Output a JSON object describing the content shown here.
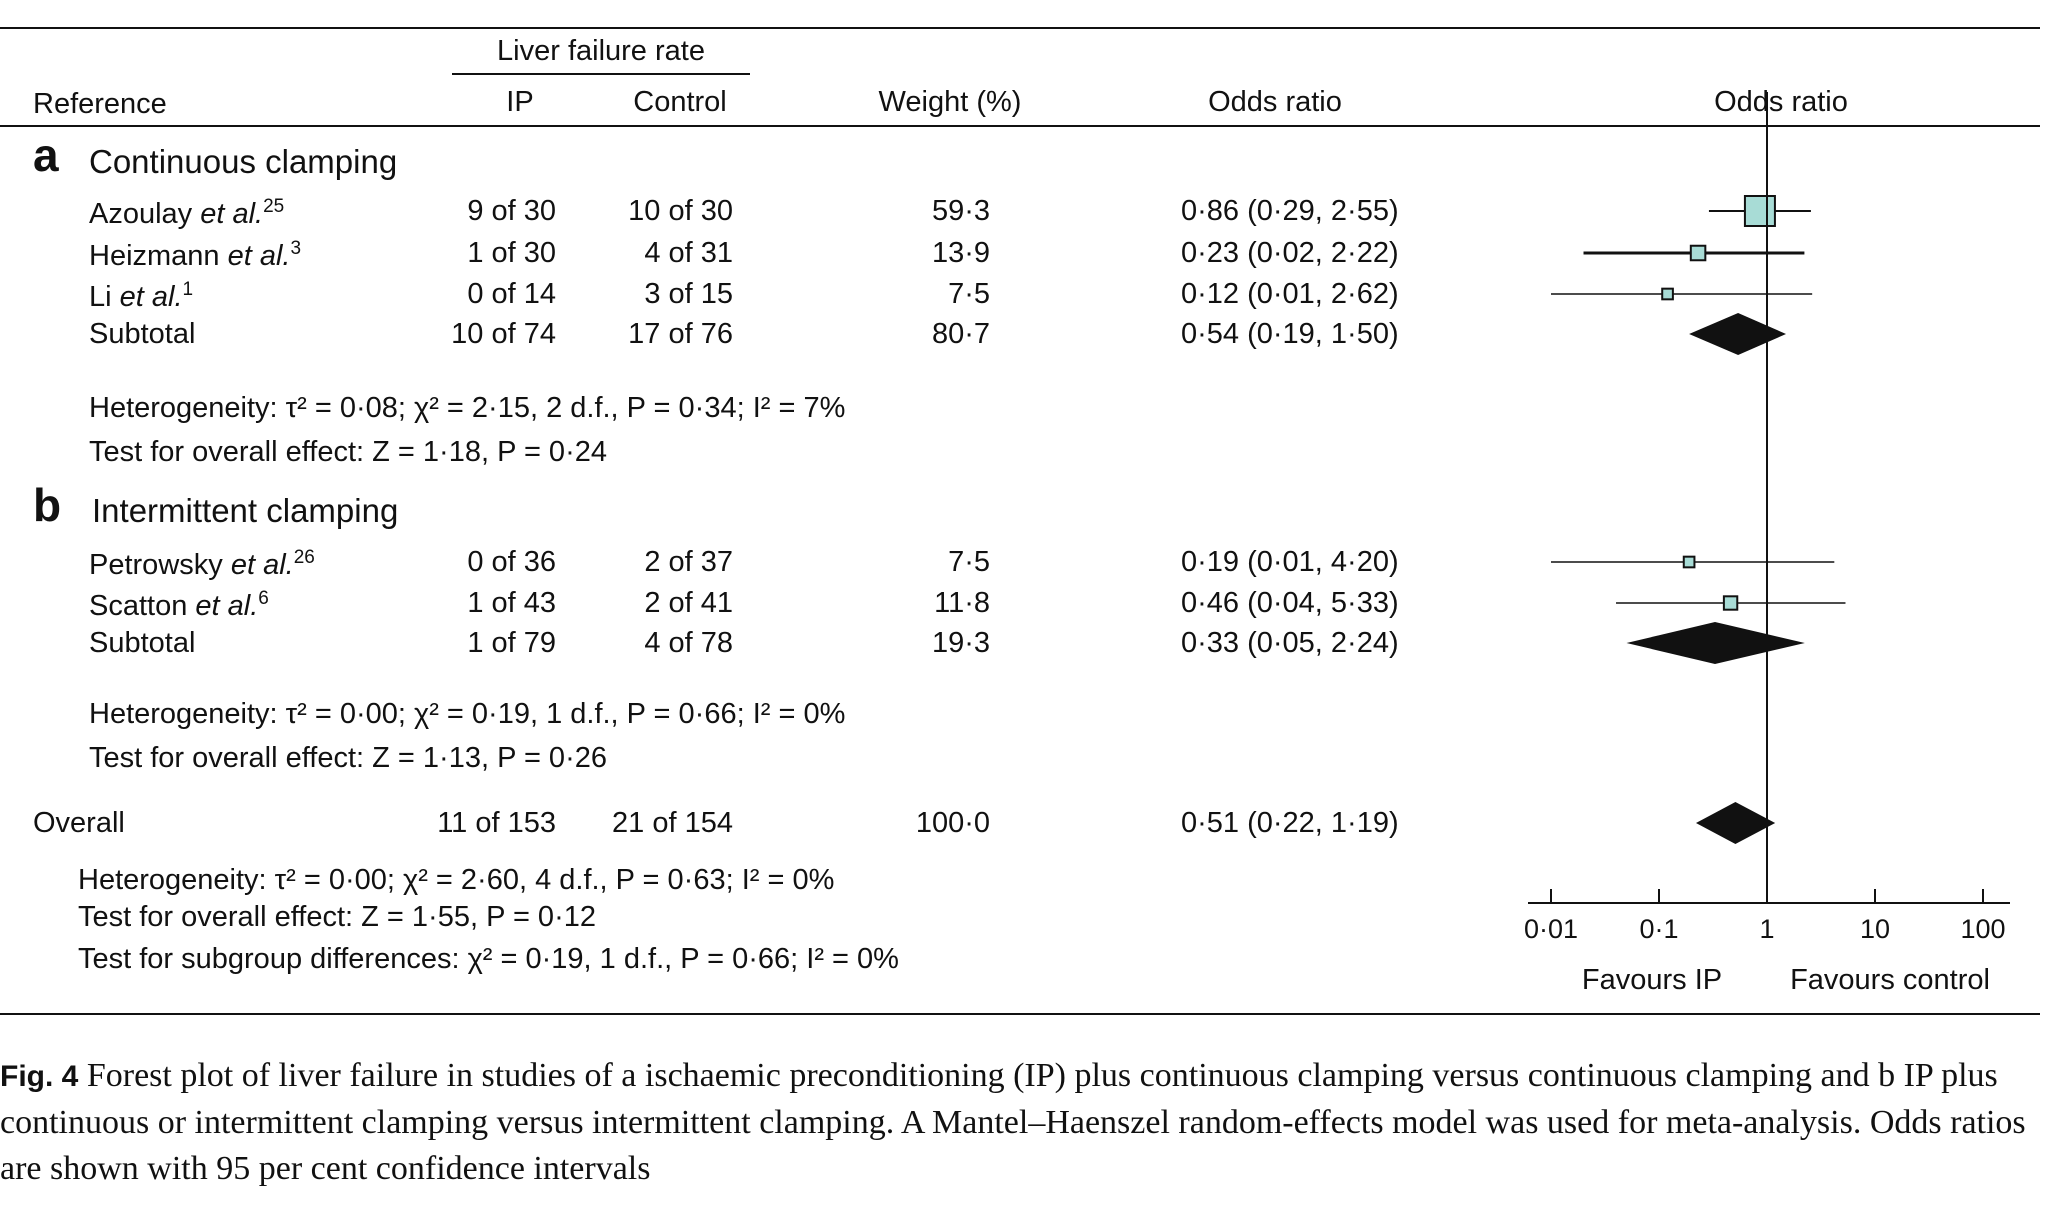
{
  "header": {
    "group_label": "Liver failure rate",
    "col_reference": "Reference",
    "col_ip": "IP",
    "col_control": "Control",
    "col_weight": "Weight (%)",
    "col_or": "Odds ratio",
    "col_plot": "Odds ratio"
  },
  "sections": [
    {
      "letter": "a",
      "title": "Continuous clamping",
      "heterogeneity": "Heterogeneity: τ² = 0·08; χ² = 2·15, 2 d.f., P = 0·34; I² = 7%",
      "overall_effect": "Test for overall effect: Z = 1·18, P = 0·24"
    },
    {
      "letter": "b",
      "title": "Intermittent clamping",
      "heterogeneity": "Heterogeneity: τ² = 0·00; χ² = 0·19, 1 d.f., P = 0·66; I² = 0%",
      "overall_effect": "Test for overall effect: Z = 1·13, P = 0·26"
    }
  ],
  "overall": {
    "label": "Overall",
    "heterogeneity": "Heterogeneity: τ² = 0·00; χ² = 2·60, 4 d.f., P = 0·63; I² = 0%",
    "overall_effect": "Test for overall effect: Z = 1·55, P = 0·12",
    "subgroup": "Test for subgroup differences: χ² = 0·19, 1 d.f., P = 0·66; I² = 0%"
  },
  "chart_data": {
    "type": "forest",
    "x_scale": "log",
    "xlim": [
      0.01,
      100
    ],
    "ticks": [
      {
        "value": 0.01,
        "label": "0·01"
      },
      {
        "value": 0.1,
        "label": "0·1"
      },
      {
        "value": 1,
        "label": "1"
      },
      {
        "value": 10,
        "label": "10"
      },
      {
        "value": 100,
        "label": "100"
      }
    ],
    "favours_left": "Favours IP",
    "favours_right": "Favours control",
    "marker_color": "#a8dcd6",
    "rows": [
      {
        "kind": "study",
        "author": "Azoulay",
        "etal": "et al.",
        "ref": "25",
        "ip": "9 of 30",
        "control": "10 of 30",
        "weight": "59·3",
        "ci_text": "0·86 (0·29, 2·55)",
        "or": 0.86,
        "lo": 0.29,
        "hi": 2.55,
        "w": 59.3
      },
      {
        "kind": "study",
        "author": "Heizmann",
        "etal": "et al.",
        "ref": "3",
        "ip": "1 of 30",
        "control": "4 of 31",
        "weight": "13·9",
        "ci_text": "0·23 (0·02, 2·22)",
        "or": 0.23,
        "lo": 0.02,
        "hi": 2.22,
        "w": 13.9
      },
      {
        "kind": "study",
        "author": "Li",
        "etal": "et al.",
        "ref": "1",
        "ip": "0 of 14",
        "control": "3 of 15",
        "weight": "7·5",
        "ci_text": "0·12 (0·01, 2·62)",
        "or": 0.12,
        "lo": 0.01,
        "hi": 2.62,
        "w": 7.5
      },
      {
        "kind": "subtotal",
        "author": "Subtotal",
        "ip": "10 of 74",
        "control": "17 of 76",
        "weight": "80·7",
        "ci_text": "0·54 (0·19, 1·50)",
        "or": 0.54,
        "lo": 0.19,
        "hi": 1.5
      },
      {
        "kind": "study",
        "author": "Petrowsky",
        "etal": "et al.",
        "ref": "26",
        "ip": "0 of 36",
        "control": "2 of 37",
        "weight": "7·5",
        "ci_text": "0·19 (0·01, 4·20)",
        "or": 0.19,
        "lo": 0.01,
        "hi": 4.2,
        "w": 7.5
      },
      {
        "kind": "study",
        "author": "Scatton",
        "etal": "et al.",
        "ref": "6",
        "ip": "1 of 43",
        "control": "2 of 41",
        "weight": "11·8",
        "ci_text": "0·46 (0·04, 5·33)",
        "or": 0.46,
        "lo": 0.04,
        "hi": 5.33,
        "w": 11.8
      },
      {
        "kind": "subtotal",
        "author": "Subtotal",
        "ip": "1 of 79",
        "control": "4 of 78",
        "weight": "19·3",
        "ci_text": "0·33 (0·05, 2·24)",
        "or": 0.33,
        "lo": 0.05,
        "hi": 2.24
      },
      {
        "kind": "overall",
        "author": "Overall",
        "ip": "11 of 153",
        "control": "21 of 154",
        "weight": "100·0",
        "ci_text": "0·51 (0·22, 1·19)",
        "or": 0.51,
        "lo": 0.22,
        "hi": 1.19
      }
    ]
  },
  "caption": {
    "fig_label": "Fig. 4",
    "text": " Forest plot of liver failure in studies of a ischaemic preconditioning (IP) plus continuous clamping versus continuous clamping and b IP plus continuous or intermittent clamping versus intermittent clamping. A Mantel–Haenszel random-effects model was used for meta-analysis. Odds ratios are shown with 95 per cent confidence intervals"
  }
}
